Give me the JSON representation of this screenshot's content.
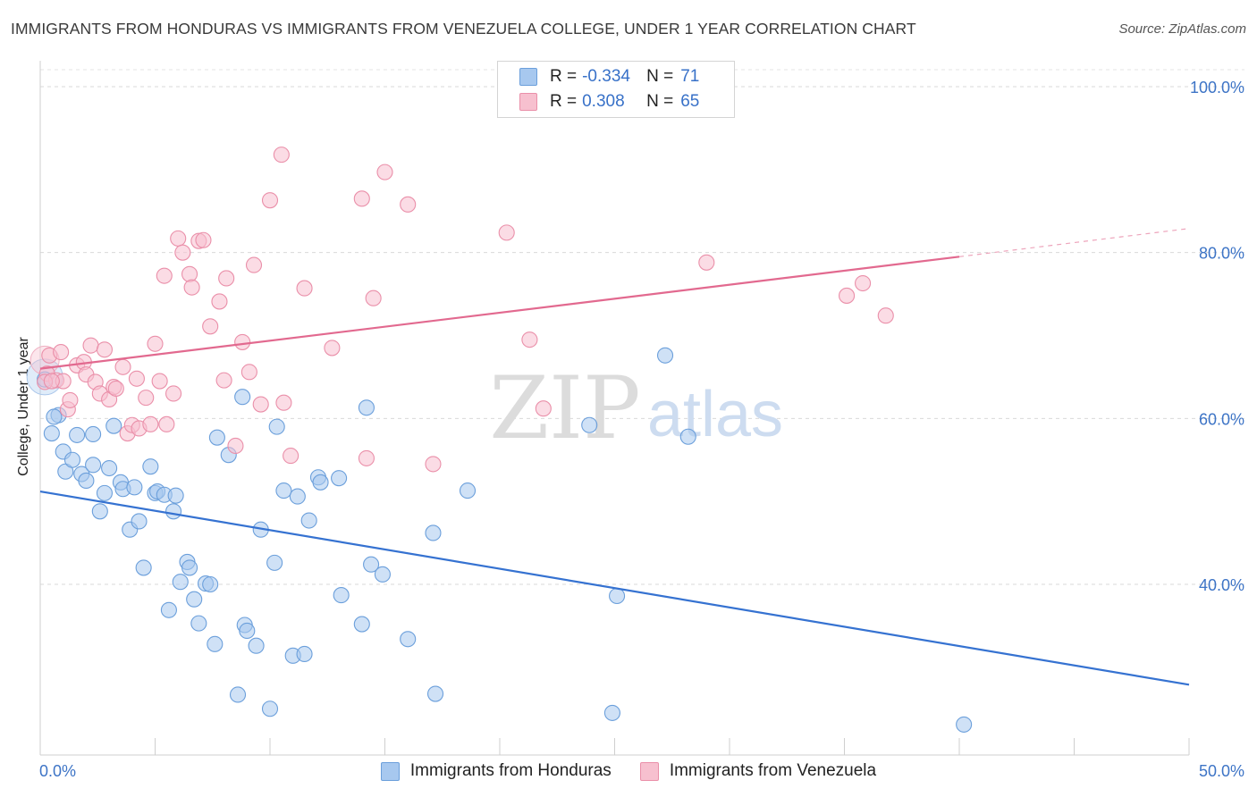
{
  "title": "IMMIGRANTS FROM HONDURAS VS IMMIGRANTS FROM VENEZUELA COLLEGE, UNDER 1 YEAR CORRELATION CHART",
  "source": "Source: ZipAtlas.com",
  "watermark": {
    "zip": "ZIP",
    "atlas": "atlas"
  },
  "legend": {
    "r_label": "R =",
    "n_label": "N =",
    "rows": [
      {
        "r": "-0.334",
        "n": "71",
        "color": "#a7c8ef",
        "edge": "#6b9fdb"
      },
      {
        "r": "0.308",
        "n": "65",
        "color": "#f7c0cf",
        "edge": "#ea8fa9"
      }
    ]
  },
  "bottom_legend": [
    {
      "label": "Immigrants from Honduras",
      "color": "#a7c8ef",
      "edge": "#6b9fdb"
    },
    {
      "label": "Immigrants from Venezuela",
      "color": "#f7c0cf",
      "edge": "#ea8fa9"
    }
  ],
  "chart_data": {
    "type": "scatter",
    "title": "IMMIGRANTS FROM HONDURAS VS IMMIGRANTS FROM VENEZUELA COLLEGE, UNDER 1 YEAR CORRELATION CHART",
    "xlabel": "",
    "ylabel": "College, Under 1 year",
    "xlim": [
      0,
      50
    ],
    "ylim": [
      22,
      102
    ],
    "x_tick_labels": [
      "0.0%",
      "50.0%"
    ],
    "y_ticks": [
      40,
      60,
      80,
      100
    ],
    "y_tick_labels": [
      "40.0%",
      "60.0%",
      "80.0%",
      "100.0%"
    ],
    "grid": "horizontal dashed",
    "legend_position": "top-center",
    "series": [
      {
        "name": "Immigrants from Honduras",
        "color": "#3572d1",
        "trend": {
          "x": [
            0,
            50
          ],
          "y": [
            51.2,
            27.9
          ]
        },
        "points": [
          [
            0.2,
            64.7
          ],
          [
            0.5,
            58.2
          ],
          [
            0.8,
            60.4
          ],
          [
            1.0,
            56.0
          ],
          [
            1.1,
            53.6
          ],
          [
            1.4,
            55.0
          ],
          [
            1.6,
            58.0
          ],
          [
            1.8,
            53.3
          ],
          [
            2.0,
            52.5
          ],
          [
            2.3,
            54.4
          ],
          [
            2.3,
            58.1
          ],
          [
            2.6,
            48.8
          ],
          [
            2.8,
            51.0
          ],
          [
            3.0,
            54.0
          ],
          [
            3.2,
            59.1
          ],
          [
            3.5,
            52.3
          ],
          [
            3.6,
            51.5
          ],
          [
            3.9,
            46.6
          ],
          [
            4.1,
            51.7
          ],
          [
            4.3,
            47.6
          ],
          [
            4.5,
            42.0
          ],
          [
            4.8,
            54.2
          ],
          [
            5.0,
            51.0
          ],
          [
            5.1,
            51.2
          ],
          [
            5.4,
            50.8
          ],
          [
            5.6,
            36.9
          ],
          [
            5.8,
            48.8
          ],
          [
            5.9,
            50.7
          ],
          [
            6.1,
            40.3
          ],
          [
            6.4,
            42.7
          ],
          [
            6.5,
            42.0
          ],
          [
            6.7,
            38.2
          ],
          [
            6.9,
            35.3
          ],
          [
            7.2,
            40.1
          ],
          [
            7.4,
            40.0
          ],
          [
            7.6,
            32.8
          ],
          [
            7.7,
            57.7
          ],
          [
            8.2,
            55.6
          ],
          [
            8.6,
            26.7
          ],
          [
            8.8,
            62.6
          ],
          [
            8.9,
            35.1
          ],
          [
            9.0,
            34.4
          ],
          [
            9.4,
            32.6
          ],
          [
            9.6,
            46.6
          ],
          [
            10.0,
            25.0
          ],
          [
            10.2,
            42.6
          ],
          [
            10.3,
            59.0
          ],
          [
            10.6,
            51.3
          ],
          [
            11.0,
            31.4
          ],
          [
            11.2,
            50.6
          ],
          [
            11.5,
            31.6
          ],
          [
            11.7,
            47.7
          ],
          [
            12.1,
            52.9
          ],
          [
            12.2,
            52.3
          ],
          [
            13.0,
            52.8
          ],
          [
            13.1,
            38.7
          ],
          [
            14.0,
            35.2
          ],
          [
            14.2,
            61.3
          ],
          [
            14.4,
            42.4
          ],
          [
            14.9,
            41.2
          ],
          [
            16.0,
            33.4
          ],
          [
            17.1,
            46.2
          ],
          [
            17.2,
            26.8
          ],
          [
            18.6,
            51.3
          ],
          [
            23.9,
            59.2
          ],
          [
            24.9,
            24.5
          ],
          [
            25.1,
            38.6
          ],
          [
            27.2,
            67.6
          ],
          [
            28.2,
            57.8
          ],
          [
            40.2,
            23.1
          ],
          [
            0.6,
            60.2
          ]
        ]
      },
      {
        "name": "Immigrants from Venezuela",
        "color": "#e2698f",
        "trend": {
          "x": [
            0,
            40
          ],
          "y": [
            66.0,
            79.5
          ]
        },
        "trend_dashed": {
          "x": [
            40,
            50
          ],
          "y": [
            79.5,
            82.9
          ]
        },
        "points": [
          [
            0.3,
            65.4
          ],
          [
            0.4,
            67.6
          ],
          [
            0.7,
            64.6
          ],
          [
            0.9,
            68.0
          ],
          [
            1.0,
            64.5
          ],
          [
            1.2,
            61.1
          ],
          [
            1.3,
            62.2
          ],
          [
            1.6,
            66.4
          ],
          [
            1.9,
            66.8
          ],
          [
            2.0,
            65.3
          ],
          [
            2.2,
            68.8
          ],
          [
            2.4,
            64.4
          ],
          [
            2.6,
            63.0
          ],
          [
            2.8,
            68.3
          ],
          [
            3.0,
            62.3
          ],
          [
            3.2,
            63.8
          ],
          [
            3.3,
            63.6
          ],
          [
            3.6,
            66.2
          ],
          [
            3.8,
            58.2
          ],
          [
            4.0,
            59.2
          ],
          [
            4.2,
            64.8
          ],
          [
            4.3,
            58.8
          ],
          [
            4.6,
            62.5
          ],
          [
            4.8,
            59.3
          ],
          [
            5.0,
            69.0
          ],
          [
            5.2,
            64.5
          ],
          [
            5.4,
            77.2
          ],
          [
            5.5,
            59.3
          ],
          [
            5.8,
            63.0
          ],
          [
            6.0,
            81.7
          ],
          [
            6.2,
            80.0
          ],
          [
            6.5,
            77.4
          ],
          [
            6.6,
            75.8
          ],
          [
            6.9,
            81.4
          ],
          [
            7.1,
            81.5
          ],
          [
            7.4,
            71.1
          ],
          [
            7.8,
            74.1
          ],
          [
            8.0,
            64.6
          ],
          [
            8.1,
            76.9
          ],
          [
            8.5,
            56.7
          ],
          [
            8.8,
            69.2
          ],
          [
            9.1,
            65.6
          ],
          [
            9.3,
            78.5
          ],
          [
            9.6,
            61.7
          ],
          [
            10.0,
            86.3
          ],
          [
            10.5,
            91.8
          ],
          [
            10.6,
            61.9
          ],
          [
            10.9,
            55.5
          ],
          [
            11.5,
            75.7
          ],
          [
            12.7,
            68.5
          ],
          [
            14.0,
            86.5
          ],
          [
            14.2,
            55.2
          ],
          [
            14.5,
            74.5
          ],
          [
            15.0,
            89.7
          ],
          [
            16.0,
            85.8
          ],
          [
            17.1,
            54.5
          ],
          [
            20.3,
            82.4
          ],
          [
            21.3,
            69.5
          ],
          [
            21.9,
            61.2
          ],
          [
            29.0,
            78.8
          ],
          [
            35.1,
            74.8
          ],
          [
            35.8,
            76.3
          ],
          [
            36.8,
            72.4
          ],
          [
            0.2,
            64.4
          ],
          [
            0.5,
            64.5
          ]
        ]
      }
    ]
  }
}
